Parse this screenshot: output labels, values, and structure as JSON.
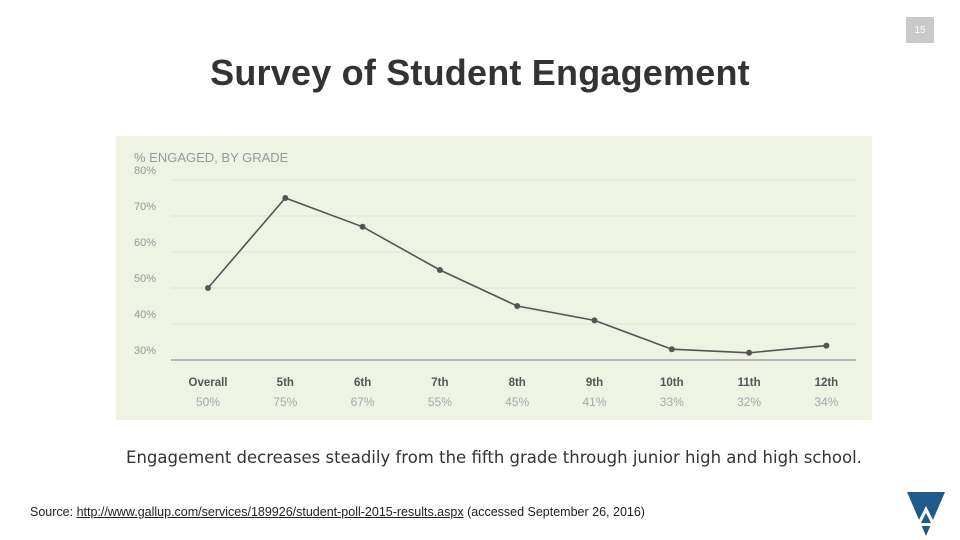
{
  "page_number": "15",
  "title": "Survey of Student Engagement",
  "caption": "Engagement decreases steadily from the fifth grade through junior high and high school.",
  "source": {
    "label": "Source:",
    "url": "http://www.gallup.com/services/189926/student-poll-2015-results.aspx",
    "note": "(accessed September 26, 2016)"
  },
  "colors": {
    "panel_background": "#eef3e2",
    "line": "#555555",
    "tick_text": "#999999",
    "value_text": "#a8a8a8",
    "category_text": "#555555",
    "logo_blue": "#1f5a8c"
  },
  "chart_data": {
    "type": "line",
    "title": "% ENGAGED, BY GRADE",
    "categories": [
      "Overall",
      "5th",
      "6th",
      "7th",
      "8th",
      "9th",
      "10th",
      "11th",
      "12th"
    ],
    "value_labels": [
      "50%",
      "75%",
      "67%",
      "55%",
      "45%",
      "41%",
      "33%",
      "32%",
      "34%"
    ],
    "series": [
      {
        "values": [
          50,
          75,
          67,
          55,
          45,
          41,
          33,
          32,
          34
        ]
      }
    ],
    "yticks": [
      "80%",
      "70%",
      "60%",
      "50%",
      "40%",
      "30%"
    ],
    "ylim": [
      30,
      80
    ],
    "grid": true,
    "legend": "none"
  }
}
